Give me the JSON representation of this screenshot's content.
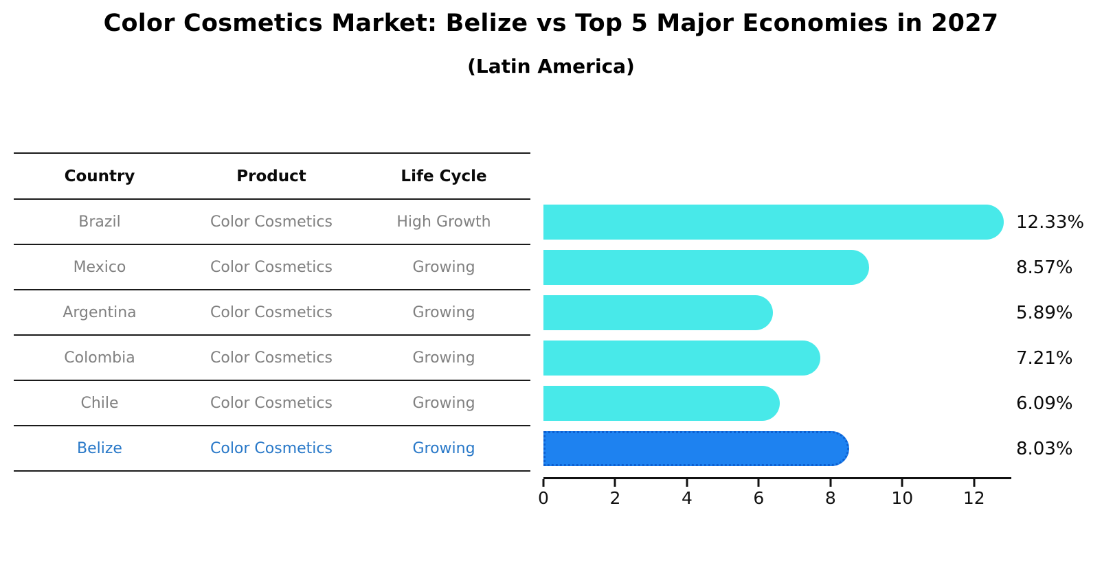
{
  "title": "Color Cosmetics Market: Belize vs Top 5 Major Economies in 2027",
  "subtitle": "(Latin America)",
  "table": {
    "headers": [
      "Country",
      "Product",
      "Life Cycle"
    ],
    "rows": [
      {
        "country": "Brazil",
        "product": "Color Cosmetics",
        "life_cycle": "High Growth",
        "highlight": false
      },
      {
        "country": "Mexico",
        "product": "Color Cosmetics",
        "life_cycle": "Growing",
        "highlight": false
      },
      {
        "country": "Argentina",
        "product": "Color Cosmetics",
        "life_cycle": "Growing",
        "highlight": false
      },
      {
        "country": "Colombia",
        "product": "Color Cosmetics",
        "life_cycle": "Growing",
        "highlight": false
      },
      {
        "country": "Chile",
        "product": "Color Cosmetics",
        "life_cycle": "Growing",
        "highlight": false
      },
      {
        "country": "Belize",
        "product": "Color Cosmetics",
        "life_cycle": "Growing",
        "highlight": true
      }
    ]
  },
  "chart_data": {
    "type": "bar",
    "orientation": "horizontal",
    "title": "Color Cosmetics Market: Belize vs Top 5 Major Economies in 2027",
    "subtitle": "(Latin America)",
    "categories": [
      "Brazil",
      "Mexico",
      "Argentina",
      "Colombia",
      "Chile",
      "Belize"
    ],
    "values": [
      12.33,
      8.57,
      5.89,
      7.21,
      6.09,
      8.03
    ],
    "value_labels": [
      "12.33%",
      "8.57%",
      "5.89%",
      "7.21%",
      "6.09%",
      "8.03%"
    ],
    "unit": "percent",
    "xticks": [
      0,
      2,
      4,
      6,
      8,
      10,
      12
    ],
    "xlim": [
      0,
      13.0
    ],
    "grid": false,
    "legend": false,
    "bar_color": "#48E9E9",
    "highlight_index": 5,
    "highlight_color": "#1E82F0",
    "highlight_border_color": "#0D5FD0",
    "highlight_border_style": "dotted"
  },
  "colors": {
    "row_text": "#808080",
    "highlight_text": "#2878C8",
    "rule_line": "#1a1a1a",
    "axis": "#111111"
  }
}
